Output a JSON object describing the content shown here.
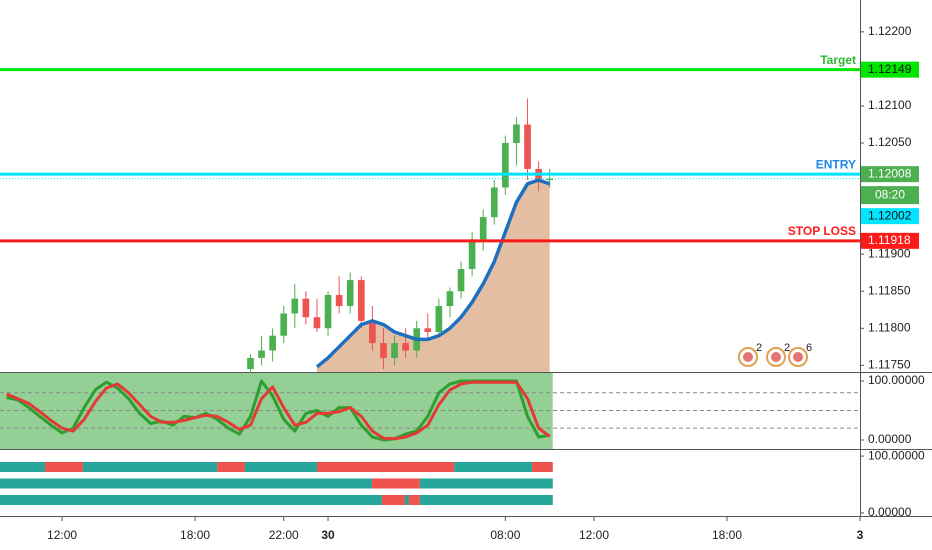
{
  "chart_data": [
    {
      "type": "candlestick",
      "xlim": [
        9.2,
        48.0
      ],
      "ylim": [
        1.11741,
        1.12243
      ],
      "yticks": [
        {
          "value": 1.122,
          "label": "1.12200"
        },
        {
          "value": 1.121,
          "label": "1.12100"
        },
        {
          "value": 1.1205,
          "label": "1.12050"
        },
        {
          "value": 1.119,
          "label": "1.11900"
        },
        {
          "value": 1.1185,
          "label": "1.11850"
        },
        {
          "value": 1.118,
          "label": "1.11800"
        },
        {
          "value": 1.1175,
          "label": "1.11750"
        }
      ],
      "up_color": "#4caf50",
      "down_color": "#ef5350",
      "x": [
        20.5,
        21,
        21.5,
        22,
        22.5,
        23,
        23.5,
        24,
        24.5,
        25,
        25.5,
        26,
        26.5,
        27,
        27.5,
        28,
        28.5,
        29,
        29.5,
        30,
        30.5,
        31,
        31.5,
        32,
        32.5,
        33,
        33.5,
        34
      ],
      "open": [
        1.11745,
        1.1176,
        1.1177,
        1.1179,
        1.1182,
        1.1184,
        1.11815,
        1.118,
        1.11845,
        1.1183,
        1.11865,
        1.1181,
        1.1178,
        1.1176,
        1.1178,
        1.1177,
        1.118,
        1.11795,
        1.1183,
        1.1185,
        1.1188,
        1.1192,
        1.1195,
        1.1199,
        1.1205,
        1.12075,
        1.12015,
        1.12
      ],
      "high": [
        1.11765,
        1.1179,
        1.118,
        1.1183,
        1.1186,
        1.1185,
        1.1184,
        1.1185,
        1.1187,
        1.11875,
        1.1187,
        1.1183,
        1.118,
        1.1179,
        1.118,
        1.1181,
        1.1182,
        1.1184,
        1.11855,
        1.1189,
        1.1193,
        1.1196,
        1.12,
        1.1206,
        1.12085,
        1.1211,
        1.12025,
        1.12015
      ],
      "low": [
        1.1174,
        1.1175,
        1.11755,
        1.1178,
        1.118,
        1.11805,
        1.11795,
        1.1179,
        1.1182,
        1.1182,
        1.118,
        1.1177,
        1.11745,
        1.1175,
        1.1176,
        1.1176,
        1.11785,
        1.1179,
        1.11815,
        1.1184,
        1.1187,
        1.11905,
        1.1194,
        1.1198,
        1.1202,
        1.12,
        1.11985,
        1.1199
      ],
      "close": [
        1.1176,
        1.1177,
        1.1179,
        1.1182,
        1.1184,
        1.11815,
        1.118,
        1.11845,
        1.1183,
        1.11865,
        1.1181,
        1.1178,
        1.1176,
        1.1178,
        1.1177,
        1.118,
        1.11795,
        1.1183,
        1.1185,
        1.1188,
        1.1192,
        1.1195,
        1.1199,
        1.1205,
        1.12075,
        1.12015,
        1.12,
        1.12002
      ],
      "moving_average": {
        "color": "#1e6fc0",
        "area_color": "#d9a27a",
        "x": [
          23.5,
          24,
          24.5,
          25,
          25.5,
          26,
          26.5,
          27,
          27.5,
          28,
          28.5,
          29,
          29.5,
          30,
          30.5,
          31,
          31.5,
          32,
          32.5,
          33,
          33.5,
          34
        ],
        "values": [
          1.11748,
          1.1176,
          1.11775,
          1.1179,
          1.11805,
          1.1181,
          1.11805,
          1.11795,
          1.1179,
          1.11785,
          1.11785,
          1.1179,
          1.118,
          1.11815,
          1.11835,
          1.1186,
          1.1189,
          1.1193,
          1.1197,
          1.11995,
          1.12,
          1.11995
        ]
      },
      "levels": [
        {
          "label": "Target",
          "value": 1.12149,
          "line_color": "#00e600",
          "label_color": "#2eb82e",
          "box_color": "#00e600",
          "box_text": "#111111"
        },
        {
          "label": "ENTRY",
          "value": 1.12008,
          "line_color": "#00e5ff",
          "label_color": "#1e88e5",
          "box_color": "#4caf50",
          "box_text": "#ffffff"
        },
        {
          "label": "STOP LOSS",
          "value": 1.11918,
          "line_color": "#ff1a1a",
          "label_color": "#ff1a1a",
          "box_color": "#ff1a1a",
          "box_text": "#ffffff"
        }
      ],
      "last_price": {
        "value": 1.12002,
        "countdown": "08:20",
        "color": "#00e5ff"
      },
      "event_counts": [
        2,
        2,
        6
      ]
    },
    {
      "type": "line",
      "xlim": [
        9.2,
        48.0
      ],
      "ylim": [
        -15.3,
        113.6
      ],
      "yticks": [
        {
          "value": 100,
          "label": "100.00000"
        },
        {
          "value": 0,
          "label": "0.00000"
        }
      ],
      "levels": [
        80,
        50,
        20
      ],
      "fill_color": "#4caf50",
      "x": [
        9.5,
        10,
        10.5,
        11,
        11.5,
        12,
        12.5,
        13,
        13.5,
        14,
        14.5,
        15,
        15.5,
        16,
        16.5,
        17,
        17.5,
        18,
        18.5,
        19,
        19.5,
        20,
        20.5,
        21,
        21.5,
        22,
        22.5,
        23,
        23.5,
        24,
        24.5,
        25,
        25.5,
        26,
        26.5,
        27,
        27.5,
        28,
        28.5,
        29,
        29.5,
        30,
        30.5,
        31,
        31.5,
        32,
        32.5,
        33,
        33.5,
        34
      ],
      "series": [
        {
          "color": "#2e9e2e",
          "values": [
            72,
            68,
            55,
            40,
            25,
            12,
            20,
            55,
            85,
            98,
            88,
            70,
            45,
            28,
            32,
            25,
            40,
            38,
            45,
            35,
            20,
            10,
            40,
            100,
            75,
            35,
            15,
            45,
            50,
            40,
            55,
            55,
            25,
            5,
            0,
            2,
            10,
            15,
            40,
            80,
            95,
            100,
            100,
            100,
            100,
            100,
            100,
            40,
            5,
            8
          ]
        },
        {
          "color": "#e53935",
          "values": [
            78,
            70,
            62,
            48,
            33,
            20,
            15,
            35,
            65,
            88,
            95,
            80,
            60,
            40,
            30,
            30,
            33,
            38,
            42,
            40,
            30,
            18,
            25,
            70,
            90,
            55,
            25,
            30,
            45,
            45,
            48,
            55,
            40,
            15,
            3,
            2,
            5,
            12,
            25,
            60,
            85,
            95,
            98,
            98,
            98,
            98,
            98,
            70,
            20,
            6
          ]
        }
      ]
    },
    {
      "type": "strips",
      "xlim": [
        9.2,
        48.0
      ],
      "ylim": [
        -5.4,
        110.7
      ],
      "yticks": [
        {
          "value": 100,
          "label": "100.00000"
        },
        {
          "value": 0,
          "label": "0.00000"
        }
      ],
      "xticks": [
        {
          "value": 12,
          "label": "12:00"
        },
        {
          "value": 18,
          "label": "18:00"
        },
        {
          "value": 22,
          "label": "22:00"
        },
        {
          "value": 24,
          "label": "30"
        },
        {
          "value": 32,
          "label": "08:00"
        },
        {
          "value": 36,
          "label": "12:00"
        },
        {
          "value": 42,
          "label": "18:00"
        },
        {
          "value": 48,
          "label": "3"
        }
      ],
      "rows": [
        [
          {
            "start": 9.2,
            "end": 11.23,
            "color": "#26a69a"
          },
          {
            "start": 11.23,
            "end": 12.94,
            "color": "#ef5350"
          },
          {
            "start": 12.94,
            "end": 19.0,
            "color": "#26a69a"
          },
          {
            "start": 19.0,
            "end": 20.25,
            "color": "#ef5350"
          },
          {
            "start": 20.25,
            "end": 23.5,
            "color": "#26a69a"
          },
          {
            "start": 23.5,
            "end": 29.7,
            "color": "#ef5350"
          },
          {
            "start": 29.7,
            "end": 33.2,
            "color": "#26a69a"
          },
          {
            "start": 33.2,
            "end": 34.14,
            "color": "#ef5350"
          }
        ],
        [
          {
            "start": 9.2,
            "end": 25.98,
            "color": "#26a69a"
          },
          {
            "start": 25.98,
            "end": 28.14,
            "color": "#ef5350"
          },
          {
            "start": 28.14,
            "end": 34.14,
            "color": "#26a69a"
          }
        ],
        [
          {
            "start": 9.2,
            "end": 26.43,
            "color": "#26a69a"
          },
          {
            "start": 26.43,
            "end": 27.47,
            "color": "#ef5350"
          },
          {
            "start": 27.47,
            "end": 27.65,
            "color": "#26a69a"
          },
          {
            "start": 27.65,
            "end": 28.14,
            "color": "#ef5350"
          },
          {
            "start": 28.14,
            "end": 34.14,
            "color": "#26a69a"
          }
        ]
      ]
    }
  ]
}
